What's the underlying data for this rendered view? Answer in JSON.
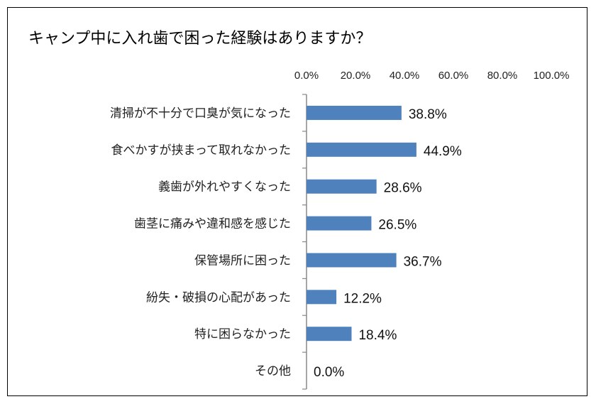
{
  "chart_data": {
    "type": "bar",
    "orientation": "horizontal",
    "title": "キャンプ中に入れ歯で困った経験はありますか？",
    "categories": [
      "清掃が不十分で口臭が気になった",
      "食べかすが挟まって取れなかった",
      "義歯が外れやすくなった",
      "歯茎に痛みや違和感を感じた",
      "保管場所に困った",
      "紛失・破損の心配があった",
      "特に困らなかった",
      "その他"
    ],
    "values": [
      38.8,
      44.9,
      28.6,
      26.5,
      36.7,
      12.2,
      18.4,
      0.0
    ],
    "value_labels": [
      "38.8%",
      "44.9%",
      "28.6%",
      "26.5%",
      "36.7%",
      "12.2%",
      "18.4%",
      "0.0%"
    ],
    "xlim": [
      0,
      100
    ],
    "x_ticks": [
      "0.0%",
      "20.0%",
      "40.0%",
      "60.0%",
      "80.0%",
      "100.0%"
    ],
    "x_axis_position": "top",
    "grid": false,
    "bar_color": "#4f81bd"
  }
}
